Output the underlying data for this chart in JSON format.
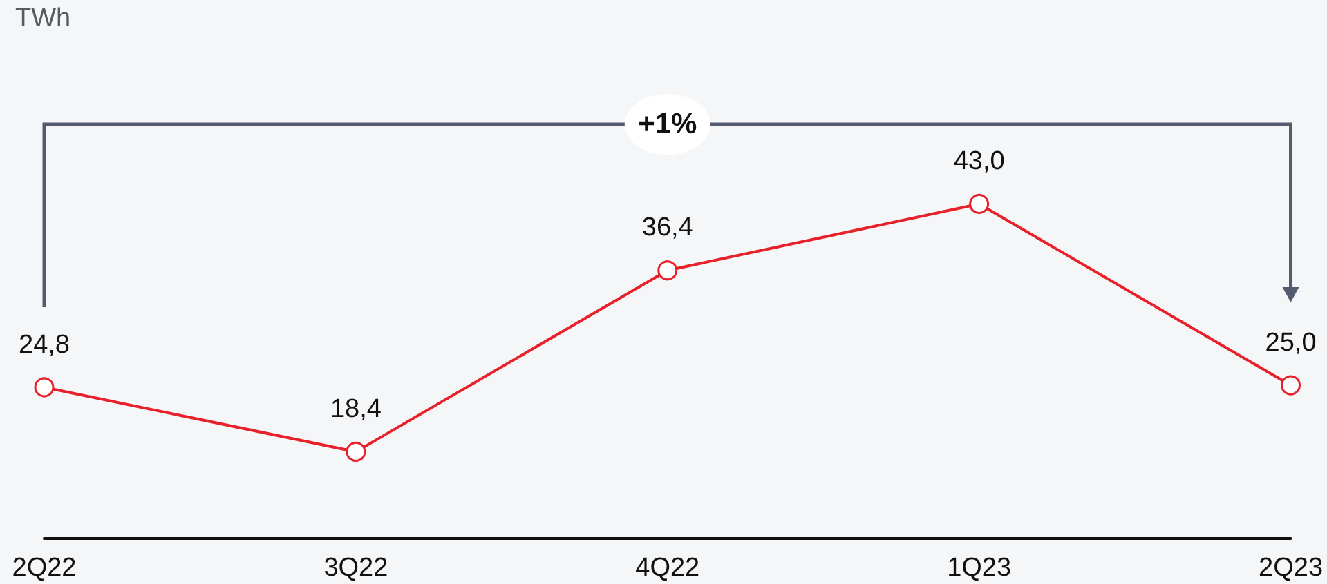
{
  "chart_data": {
    "type": "line",
    "categories": [
      "2Q22",
      "3Q22",
      "4Q22",
      "1Q23",
      "2Q23"
    ],
    "series": [
      {
        "color": "#e8202a",
        "values": [
          24.8,
          18.4,
          36.4,
          43.0,
          25.0
        ],
        "value_labels": [
          "24,8",
          "18,4",
          "36,4",
          "43,0",
          "25,0"
        ]
      }
    ],
    "annotations": [
      "TWh",
      "+1%"
    ],
    "marker": "circle",
    "line_style": "solid"
  }
}
